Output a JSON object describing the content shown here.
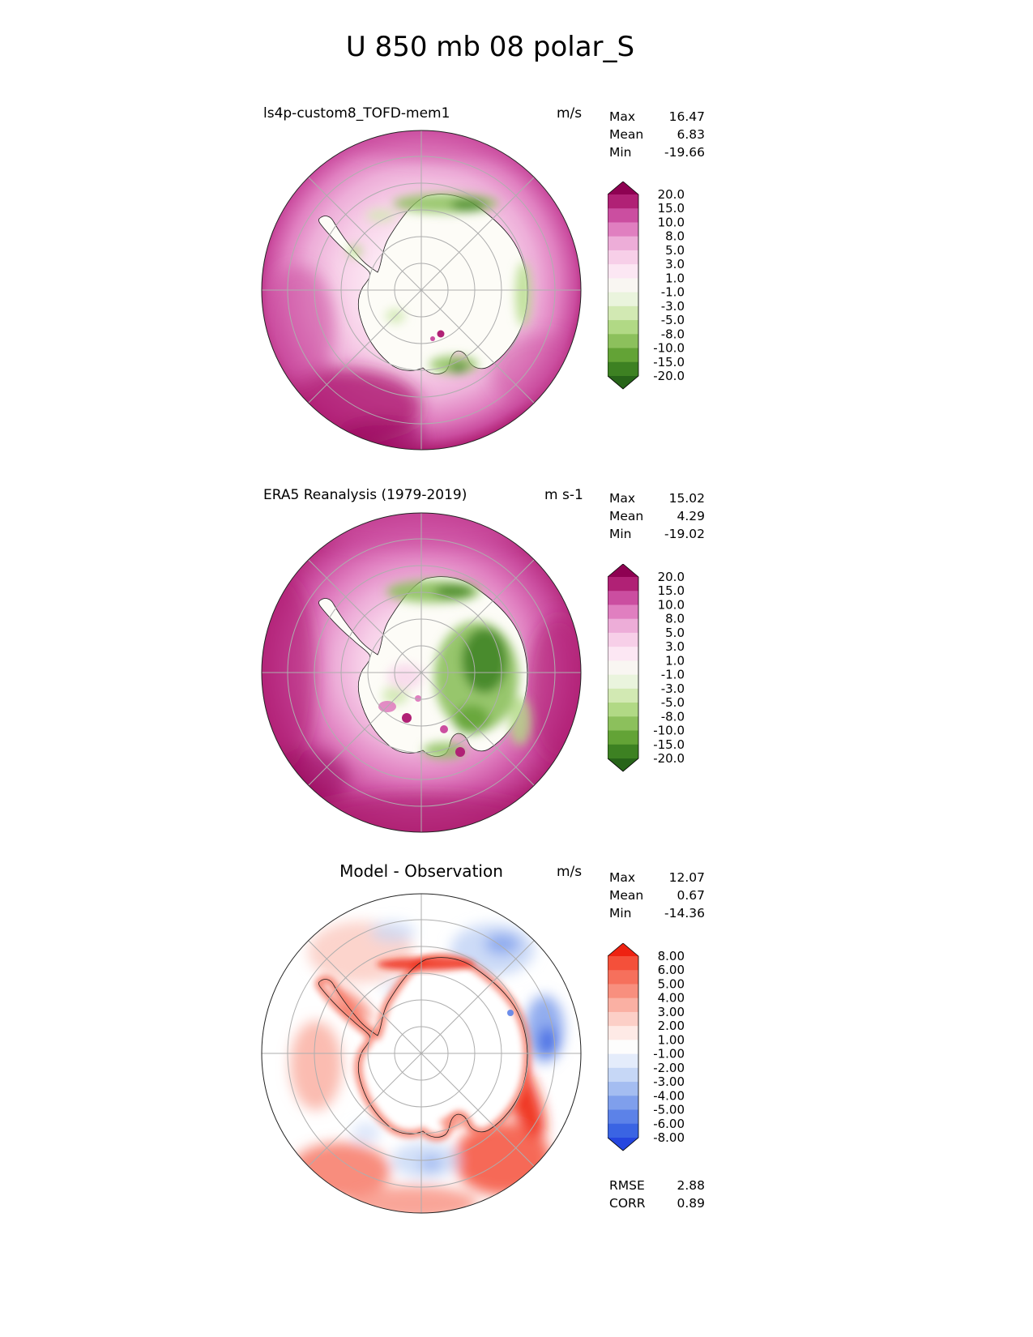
{
  "title": "U 850 mb 08 polar_S",
  "map": {
    "land_color": "#fdfcf7",
    "outline_color": "#1a1a1a",
    "graticule_color": "#aeaeae",
    "rim_color": "#222222",
    "diff_base_color": "#ffffff"
  },
  "panels": [
    {
      "label": "ls4p-custom8_TOFD-mem1",
      "units": "m/s",
      "stats": {
        "max_label": "Max",
        "max": "16.47",
        "mean_label": "Mean",
        "mean": "6.83",
        "min_label": "Min",
        "min": "-19.66"
      },
      "colorbar": {
        "ticks": [
          "20.0",
          "15.0",
          "10.0",
          "8.0",
          "5.0",
          "3.0",
          "1.0",
          "-1.0",
          "-3.0",
          "-5.0",
          "-8.0",
          "-10.0",
          "-15.0",
          "-20.0"
        ],
        "colors": [
          "#8e0152",
          "#b02175",
          "#cb4ea0",
          "#e07fc0",
          "#edadd8",
          "#f7cfe8",
          "#fce7f3",
          "#f9f6f2",
          "#eaf4dd",
          "#d2e9b3",
          "#b1d985",
          "#8cc05c",
          "#63a336",
          "#3d8122",
          "#276419"
        ]
      }
    },
    {
      "label": "ERA5 Reanalysis (1979-2019)",
      "units": "m s-1",
      "stats": {
        "max_label": "Max",
        "max": "15.02",
        "mean_label": "Mean",
        "mean": "4.29",
        "min_label": "Min",
        "min": "-19.02"
      },
      "colorbar": {
        "ticks": [
          "20.0",
          "15.0",
          "10.0",
          "8.0",
          "5.0",
          "3.0",
          "1.0",
          "-1.0",
          "-3.0",
          "-5.0",
          "-8.0",
          "-10.0",
          "-15.0",
          "-20.0"
        ],
        "colors": [
          "#8e0152",
          "#b02175",
          "#cb4ea0",
          "#e07fc0",
          "#edadd8",
          "#f7cfe8",
          "#fce7f3",
          "#f9f6f2",
          "#eaf4dd",
          "#d2e9b3",
          "#b1d985",
          "#8cc05c",
          "#63a336",
          "#3d8122",
          "#276419"
        ]
      }
    },
    {
      "label": "Model - Observation",
      "units": "m/s",
      "stats": {
        "max_label": "Max",
        "max": "12.07",
        "mean_label": "Mean",
        "mean": "0.67",
        "min_label": "Min",
        "min": "-14.36"
      },
      "colorbar": {
        "ticks": [
          "8.00",
          "6.00",
          "5.00",
          "4.00",
          "3.00",
          "2.00",
          "1.00",
          "-1.00",
          "-2.00",
          "-3.00",
          "-4.00",
          "-5.00",
          "-6.00",
          "-8.00"
        ],
        "colors": [
          "#ee2211",
          "#f4503a",
          "#f6705c",
          "#f88f7e",
          "#fab0a3",
          "#fccfc7",
          "#feeae6",
          "#fdfdfd",
          "#e4ecfb",
          "#c6d7f6",
          "#a4bdf1",
          "#7f9fec",
          "#5c82e8",
          "#3a64e3",
          "#2546df"
        ]
      },
      "extra": {
        "rmse_label": "RMSE",
        "rmse": "2.88",
        "corr_label": "CORR",
        "corr": "0.89"
      }
    }
  ],
  "chart_data": [
    {
      "type": "heatmap",
      "subtype": "south_polar_stereographic_contour_map",
      "title": "ls4p-custom8_TOFD-mem1",
      "variable": "U 850 mb",
      "region": "polar_S (Antarctica)",
      "units": "m/s",
      "stats": {
        "max": 16.47,
        "mean": 6.83,
        "min": -19.66
      },
      "contour_levels": [
        20.0,
        15.0,
        10.0,
        8.0,
        5.0,
        3.0,
        1.0,
        -1.0,
        -3.0,
        -5.0,
        -8.0,
        -10.0,
        -15.0,
        -20.0
      ],
      "colormap": "magenta(positive)-white-green(negative), extended arrows both ends",
      "legend_position": "right",
      "description": "Strong positive (westerly) U over Southern Ocean ring, near-zero over interior, negative (easterly) band along Antarctic coast"
    },
    {
      "type": "heatmap",
      "subtype": "south_polar_stereographic_contour_map",
      "title": "ERA5 Reanalysis (1979-2019)",
      "variable": "U 850 mb",
      "region": "polar_S (Antarctica)",
      "units": "m s-1",
      "stats": {
        "max": 15.02,
        "mean": 4.29,
        "min": -19.02
      },
      "contour_levels": [
        20.0,
        15.0,
        10.0,
        8.0,
        5.0,
        3.0,
        1.0,
        -1.0,
        -3.0,
        -5.0,
        -8.0,
        -10.0,
        -15.0,
        -20.0
      ],
      "colormap": "magenta(positive)-white-green(negative), extended arrows both ends",
      "legend_position": "right",
      "description": "Deeper magenta ocean ring and broad green easterly region over East Antarctica"
    },
    {
      "type": "heatmap",
      "subtype": "south_polar_stereographic_difference_map",
      "title": "Model - Observation",
      "variable": "U 850 mb difference",
      "region": "polar_S (Antarctica)",
      "units": "m/s",
      "stats": {
        "max": 12.07,
        "mean": 0.67,
        "min": -14.36
      },
      "rmse": 2.88,
      "corr": 0.89,
      "contour_levels": [
        8.0,
        6.0,
        5.0,
        4.0,
        3.0,
        2.0,
        1.0,
        -1.0,
        -2.0,
        -3.0,
        -4.0,
        -5.0,
        -6.0,
        -8.0
      ],
      "colormap": "red(positive)-white-blue(negative), extended arrows both ends",
      "legend_position": "right",
      "description": "Positive (red) bias ring along Antarctic coast, strongest on eastern coast; negative (blue) patches northeast sector and right rim"
    }
  ]
}
